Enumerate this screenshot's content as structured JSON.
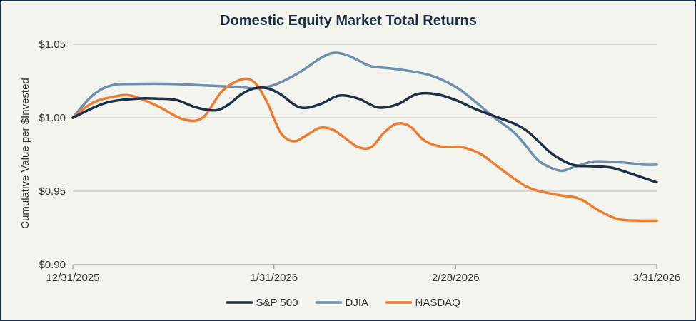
{
  "chart_data": {
    "type": "line",
    "title": "Domestic Equity Market Total Returns",
    "xlabel": "",
    "ylabel": "Cumulative Value per $Invested",
    "ylim": [
      0.9,
      1.05
    ],
    "yticks": [
      1.05,
      1.0,
      0.95,
      0.9
    ],
    "ytick_labels": [
      "$1.05",
      "$1.00",
      "$0.95",
      "$0.90"
    ],
    "x_range_days": [
      0,
      90
    ],
    "xticks": [
      0,
      31,
      59,
      90
    ],
    "xtick_labels": [
      "12/31/2025",
      "1/31/2026",
      "2/28/2026",
      "3/31/2026"
    ],
    "grid": "horizontal",
    "legend_position": "bottom-center",
    "series": [
      {
        "name": "S&P 500",
        "color": "#1f2f45",
        "x": [
          0,
          5,
          10,
          13,
          16,
          19,
          22,
          24,
          26,
          28,
          30,
          32,
          35,
          38,
          41,
          44,
          47,
          50,
          53,
          56,
          59,
          62,
          65,
          68,
          70,
          72,
          74,
          77,
          80,
          83,
          86,
          88,
          90
        ],
        "y": [
          1.0,
          1.01,
          1.013,
          1.013,
          1.012,
          1.007,
          1.005,
          1.009,
          1.016,
          1.02,
          1.02,
          1.016,
          1.007,
          1.009,
          1.015,
          1.013,
          1.007,
          1.009,
          1.016,
          1.016,
          1.012,
          1.006,
          1.001,
          0.996,
          0.991,
          0.983,
          0.975,
          0.968,
          0.967,
          0.966,
          0.962,
          0.959,
          0.956
        ]
      },
      {
        "name": "DJIA",
        "color": "#6f8fb1",
        "x": [
          0,
          3,
          6,
          10,
          15,
          20,
          25,
          28,
          30,
          32,
          35,
          38,
          40,
          42,
          44,
          46,
          50,
          55,
          59,
          62,
          65,
          68,
          70,
          72,
          75,
          77,
          80,
          83,
          86,
          88,
          90
        ],
        "y": [
          1.0,
          1.015,
          1.022,
          1.023,
          1.023,
          1.022,
          1.021,
          1.02,
          1.021,
          1.024,
          1.031,
          1.04,
          1.044,
          1.043,
          1.039,
          1.035,
          1.033,
          1.029,
          1.021,
          1.011,
          1.0,
          0.99,
          0.98,
          0.97,
          0.964,
          0.966,
          0.97,
          0.97,
          0.969,
          0.968,
          0.968
        ]
      },
      {
        "name": "NASDAQ",
        "color": "#ee7b30",
        "x": [
          0,
          3,
          6,
          9,
          13,
          17,
          20,
          23,
          26,
          28,
          30,
          32,
          34,
          36,
          38,
          40,
          42,
          44,
          46,
          48,
          50,
          52,
          54,
          56,
          58,
          60,
          63,
          66,
          70,
          74,
          78,
          81,
          84,
          87,
          90
        ],
        "y": [
          1.0,
          1.01,
          1.014,
          1.015,
          1.008,
          0.999,
          1.0,
          1.018,
          1.026,
          1.024,
          1.01,
          0.99,
          0.984,
          0.988,
          0.993,
          0.992,
          0.986,
          0.98,
          0.98,
          0.99,
          0.996,
          0.994,
          0.985,
          0.981,
          0.98,
          0.98,
          0.975,
          0.965,
          0.953,
          0.948,
          0.945,
          0.937,
          0.931,
          0.93,
          0.93
        ]
      }
    ]
  }
}
